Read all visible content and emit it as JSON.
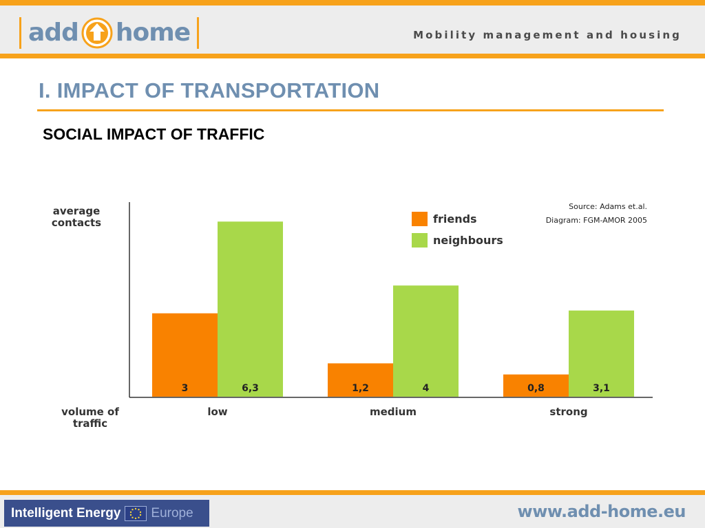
{
  "header": {
    "logo_word1": "add",
    "logo_word2": "home",
    "tagline": "Mobility management and housing"
  },
  "page_title": "I. IMPACT OF TRANSPORTATION",
  "subtitle": "SOCIAL IMPACT OF TRAFFIC",
  "chart_data": {
    "type": "bar",
    "categories": [
      "low",
      "medium",
      "strong"
    ],
    "series": [
      {
        "name": "friends",
        "values": [
          3,
          1.2,
          0.8
        ],
        "labels": [
          "3",
          "1,2",
          "0,8"
        ],
        "color": "#f98200"
      },
      {
        "name": "neighbours",
        "values": [
          6.3,
          4,
          3.1
        ],
        "labels": [
          "6,3",
          "4",
          "3,1"
        ],
        "color": "#a8d84a"
      }
    ],
    "ylabel": [
      "average",
      "contacts"
    ],
    "xlabel": [
      "volume of",
      "traffic"
    ],
    "ylim": [
      0,
      7
    ],
    "source_lines": [
      "Source: Adams et.al.",
      "Diagram: FGM-AMOR 2005"
    ],
    "legend_position": "top-center",
    "grid": false
  },
  "footer": {
    "program_name": "Intelligent Energy",
    "program_region": "Europe",
    "website": "www.add-home.eu"
  },
  "colors": {
    "accent_orange": "#f7a21b",
    "title_blue": "#6f8fb0"
  }
}
